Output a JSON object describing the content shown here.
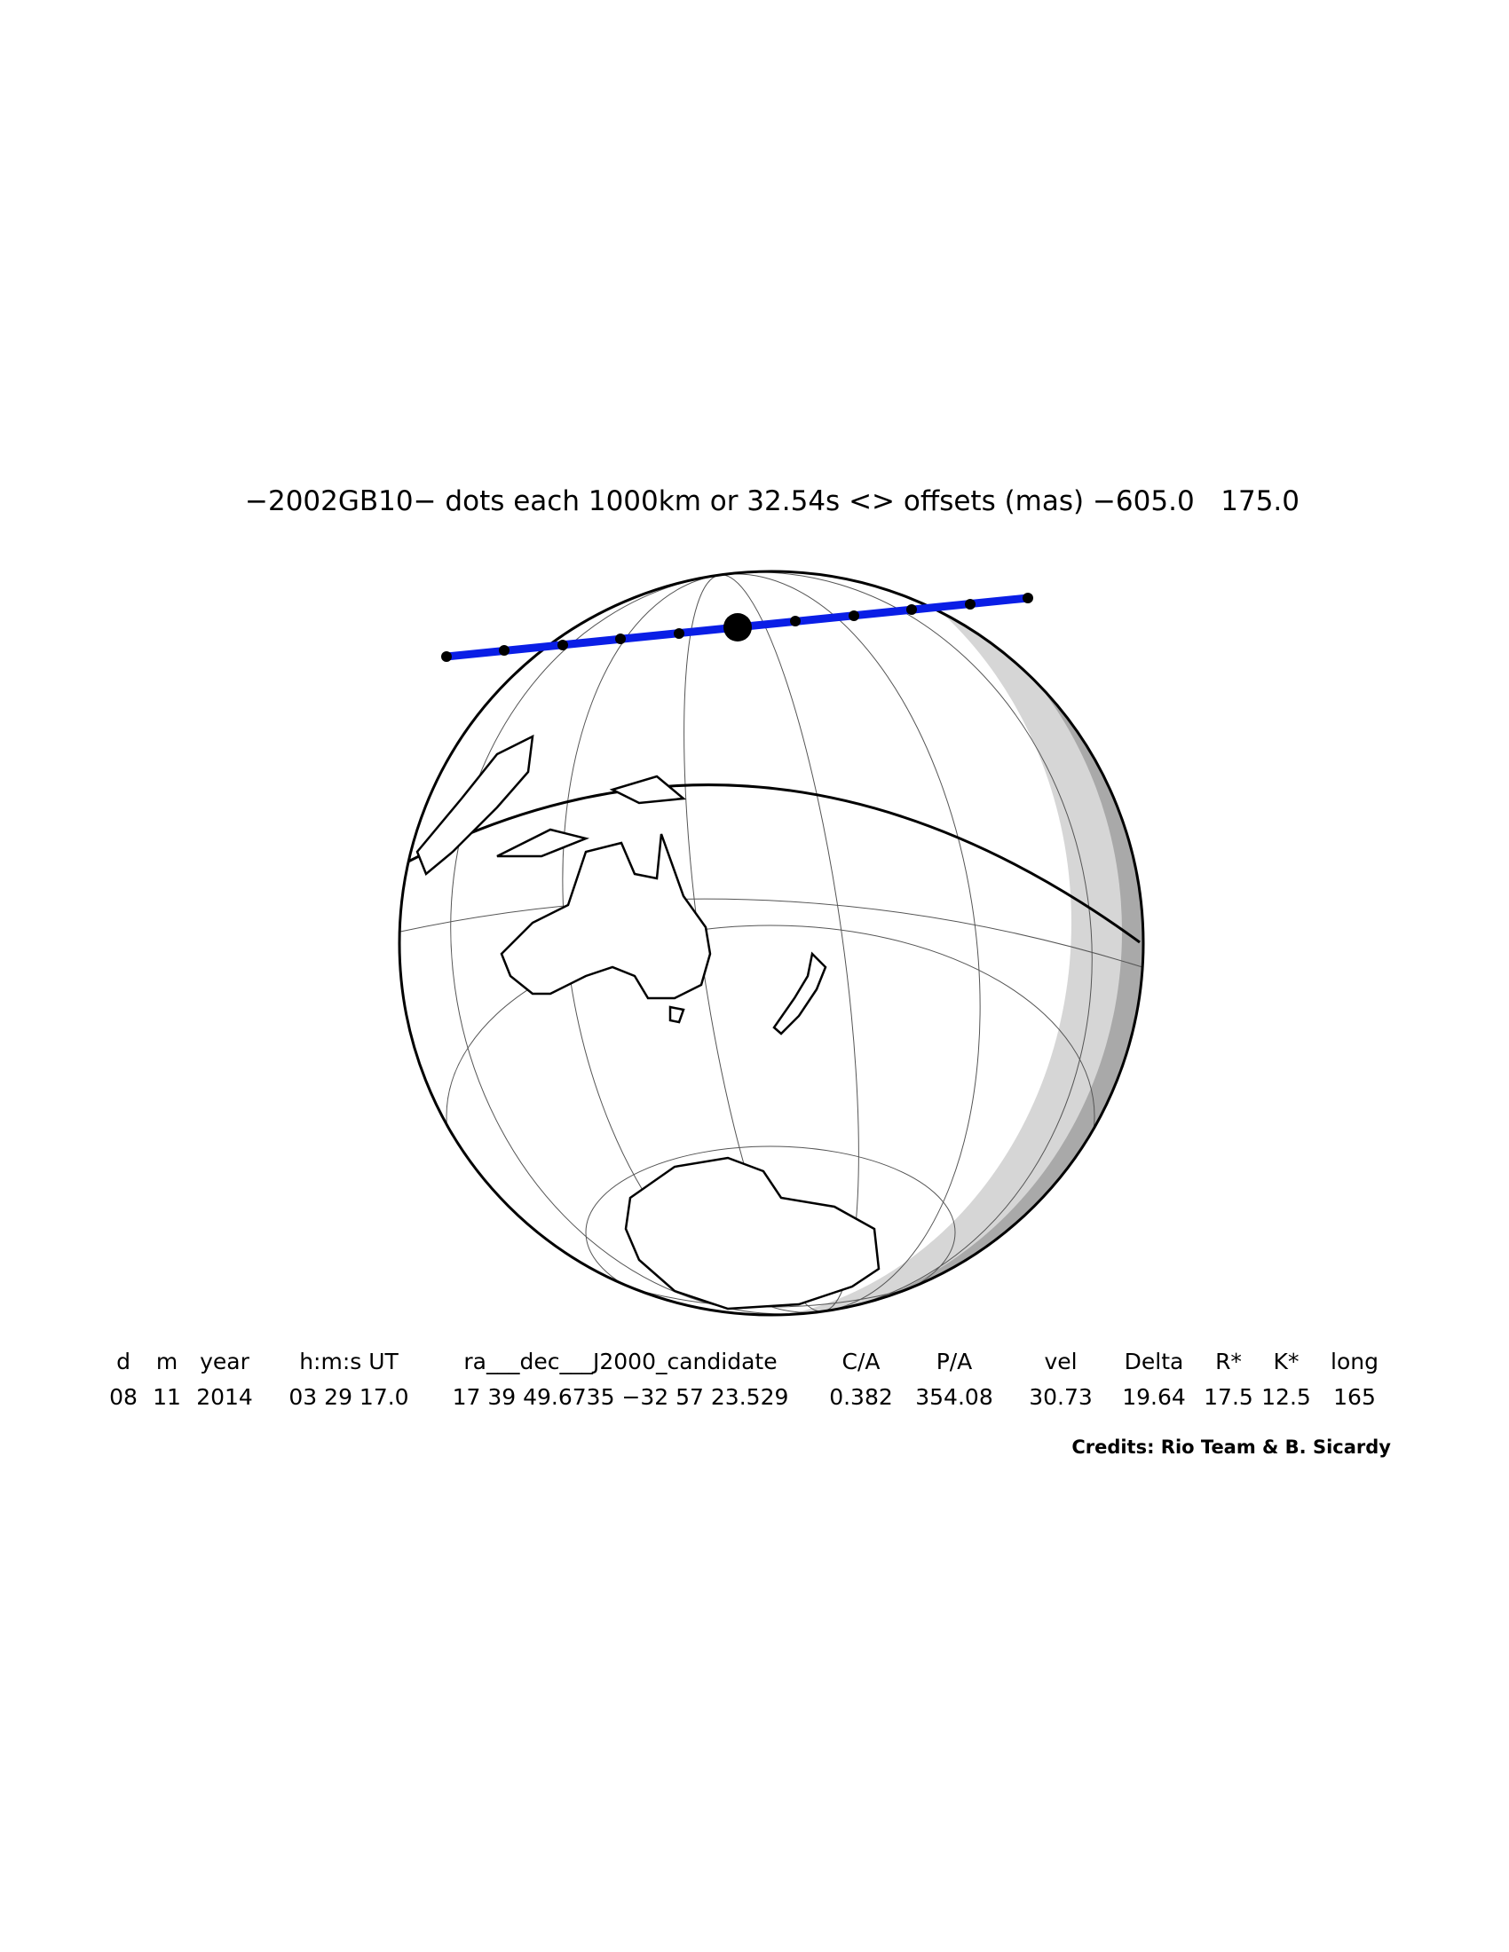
{
  "title": "−2002GB10− dots each 1000km or 32.54s <> offsets (mas) −605.0   175.0",
  "table": {
    "headers": [
      "d",
      "m",
      "year",
      "h:m:s UT",
      "ra___dec___J2000_candidate",
      "C/A",
      "P/A",
      "vel",
      "Delta",
      "R*",
      "K*",
      "long"
    ],
    "rows": [
      [
        "08",
        "11",
        "2014",
        "03 29 17.0",
        "17 39 49.6735 −32 57 23.529",
        "0.382",
        "354.08",
        "30.73",
        "19.64",
        "17.5",
        "12.5",
        "165"
      ]
    ]
  },
  "credits": "Credits: Rio Team & B. Sicardy"
}
